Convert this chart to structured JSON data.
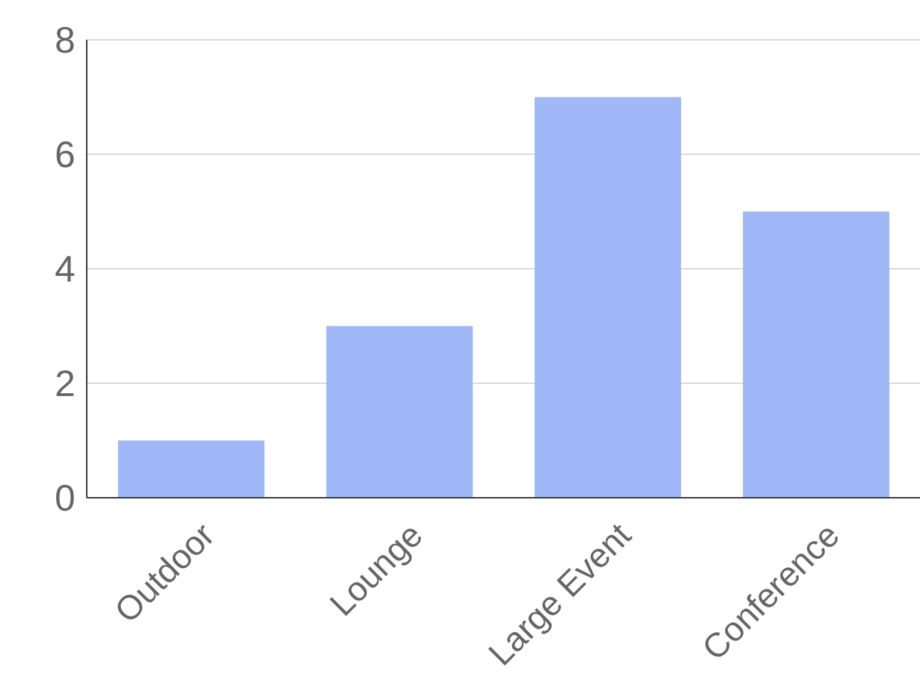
{
  "chart_data": {
    "type": "bar",
    "categories": [
      "Outdoor",
      "Lounge",
      "Large Event",
      "Conference"
    ],
    "values": [
      1,
      3,
      7,
      5
    ],
    "color": "#a0b8f8",
    "ylim": [
      0,
      8
    ],
    "yticks": [
      0,
      2,
      4,
      6,
      8
    ],
    "grid": "y"
  }
}
